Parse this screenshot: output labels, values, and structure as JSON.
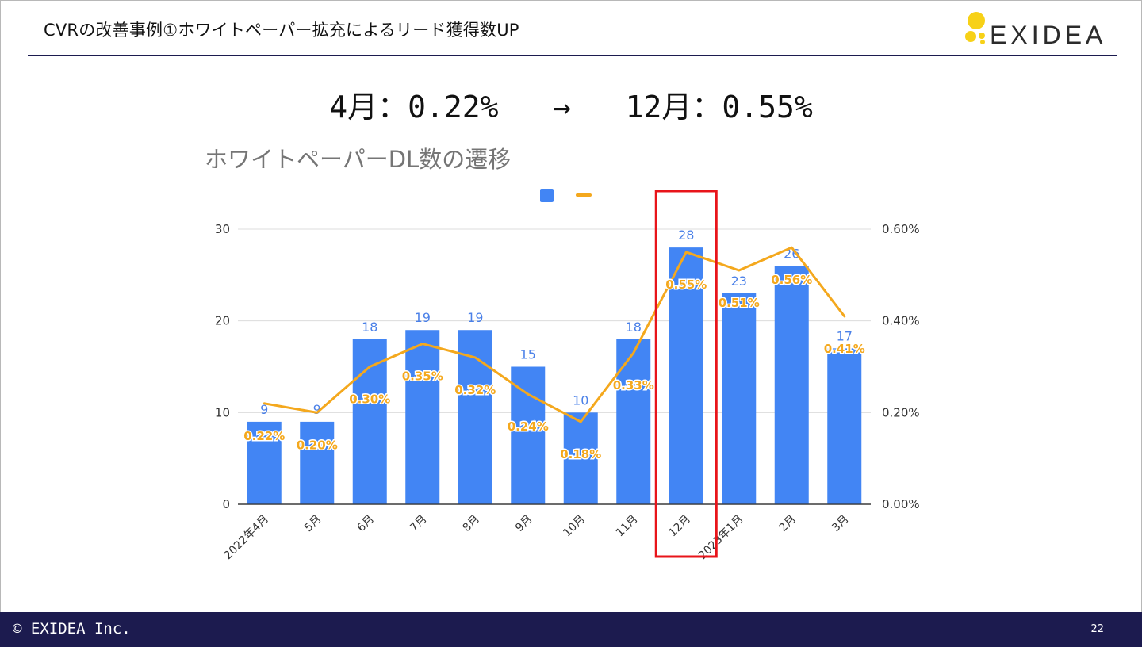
{
  "slide": {
    "title": "CVRの改善事例①ホワイトペーパー拡充によるリード獲得数UP",
    "logo_text": "EXIDEA",
    "headline_left": "4月：0.22%",
    "headline_arrow": "→",
    "headline_right": "12月：0.55%",
    "footer_copyright": "© EXIDEA Inc.",
    "page_number": "22"
  },
  "colors": {
    "bar": "#4285f4",
    "line": "#f4a81d",
    "bar_label": "#4a80e8",
    "line_label": "#f4a81d",
    "highlight": "#e8141a",
    "footer": "#1c1b4f",
    "logo_yellow": "#f7d117"
  },
  "chart_data": {
    "type": "bar",
    "title": "ホワイトペーパーDL数の遷移",
    "categories": [
      "2022年4月",
      "5月",
      "6月",
      "7月",
      "8月",
      "9月",
      "10月",
      "11月",
      "12月",
      "2023年1月",
      "2月",
      "3月"
    ],
    "series": [
      {
        "type": "bar",
        "axis": "left",
        "values": [
          9,
          9,
          18,
          19,
          19,
          15,
          10,
          18,
          28,
          23,
          26,
          17
        ],
        "labels": [
          "9",
          "9",
          "18",
          "19",
          "19",
          "15",
          "10",
          "18",
          "28",
          "23",
          "26",
          "17"
        ]
      },
      {
        "type": "line",
        "axis": "right",
        "values": [
          0.22,
          0.2,
          0.3,
          0.35,
          0.32,
          0.24,
          0.18,
          0.33,
          0.55,
          0.51,
          0.56,
          0.41
        ],
        "labels": [
          "0.22%",
          "0.20%",
          "0.30%",
          "0.35%",
          "0.32%",
          "0.24%",
          "0.18%",
          "0.33%",
          "0.55%",
          "0.51%",
          "0.56%",
          "0.41%"
        ]
      }
    ],
    "y_left": {
      "min": 0,
      "max": 30,
      "ticks": [
        "0",
        "10",
        "20",
        "30"
      ]
    },
    "y_right": {
      "min": 0,
      "max": 0.6,
      "ticks": [
        "0.00%",
        "0.20%",
        "0.40%",
        "0.60%"
      ]
    },
    "grid": true,
    "legend": "top-center",
    "highlight_category": "12月"
  }
}
